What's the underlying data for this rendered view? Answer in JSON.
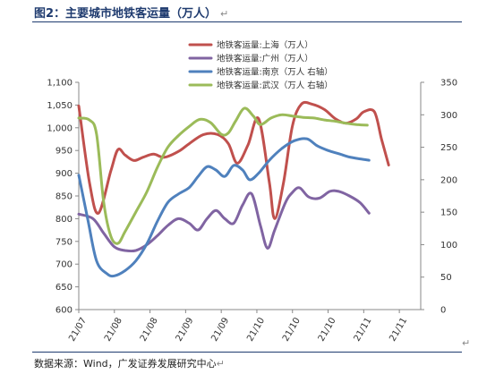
{
  "figure": {
    "title": "图2：主要城市地铁客运量（万人）",
    "title_mark": "↵",
    "source": "数据来源：Wind，广发证券发展研究中心",
    "source_mark": "↵",
    "return_mark": "↵"
  },
  "chart_data": {
    "type": "line",
    "title": "图2：主要城市地铁客运量（万人）",
    "x_ticks": [
      "21/07",
      "21/08",
      "21/08",
      "21/09",
      "21/09",
      "21/10",
      "21/10",
      "21/10",
      "21/11",
      "21/11"
    ],
    "x_range": [
      0,
      9.6
    ],
    "y_left": {
      "range": [
        600,
        1100
      ],
      "ticks": [
        600,
        650,
        700,
        750,
        800,
        850,
        900,
        950,
        1000,
        1050,
        1100
      ],
      "tick_labels": [
        "600",
        "650",
        "700",
        "750",
        "800",
        "850",
        "900",
        "950",
        "1,000",
        "1,050",
        "1,100"
      ]
    },
    "y_right": {
      "range": [
        0,
        350
      ],
      "ticks": [
        0,
        50,
        100,
        150,
        200,
        250,
        300,
        350
      ],
      "tick_labels": [
        "0",
        "50",
        "100",
        "150",
        "200",
        "250",
        "300",
        "350"
      ]
    },
    "grid": false,
    "legend_position": "top-right",
    "series": [
      {
        "name": "地铁客运量:上海（万人）",
        "axis": "left",
        "color": "#c0504d",
        "points": [
          [
            0,
            1048
          ],
          [
            0.3,
            880
          ],
          [
            0.55,
            812
          ],
          [
            0.9,
            905
          ],
          [
            1.1,
            952
          ],
          [
            1.3,
            940
          ],
          [
            1.55,
            928
          ],
          [
            1.8,
            935
          ],
          [
            2.1,
            942
          ],
          [
            2.4,
            935
          ],
          [
            2.8,
            948
          ],
          [
            3.1,
            965
          ],
          [
            3.5,
            985
          ],
          [
            3.9,
            985
          ],
          [
            4.2,
            965
          ],
          [
            4.45,
            922
          ],
          [
            4.75,
            962
          ],
          [
            5.05,
            1020
          ],
          [
            5.35,
            880
          ],
          [
            5.5,
            800
          ],
          [
            5.75,
            880
          ],
          [
            6.0,
            1005
          ],
          [
            6.25,
            1052
          ],
          [
            6.55,
            1052
          ],
          [
            6.9,
            1040
          ],
          [
            7.2,
            1020
          ],
          [
            7.5,
            1010
          ],
          [
            7.8,
            1020
          ],
          [
            8.0,
            1035
          ],
          [
            8.3,
            1035
          ],
          [
            8.5,
            975
          ],
          [
            8.7,
            918
          ]
        ]
      },
      {
        "name": "地铁客运量:广州（万人）",
        "axis": "left",
        "color": "#8064a2",
        "points": [
          [
            0,
            810
          ],
          [
            0.4,
            800
          ],
          [
            0.7,
            768
          ],
          [
            1.0,
            738
          ],
          [
            1.3,
            730
          ],
          [
            1.6,
            730
          ],
          [
            1.9,
            742
          ],
          [
            2.2,
            762
          ],
          [
            2.5,
            785
          ],
          [
            2.8,
            800
          ],
          [
            3.1,
            790
          ],
          [
            3.35,
            775
          ],
          [
            3.6,
            800
          ],
          [
            3.85,
            818
          ],
          [
            4.1,
            800
          ],
          [
            4.35,
            790
          ],
          [
            4.6,
            830
          ],
          [
            4.85,
            855
          ],
          [
            5.1,
            785
          ],
          [
            5.3,
            735
          ],
          [
            5.5,
            775
          ],
          [
            5.8,
            835
          ],
          [
            6.0,
            858
          ],
          [
            6.2,
            868
          ],
          [
            6.45,
            848
          ],
          [
            6.75,
            845
          ],
          [
            7.05,
            860
          ],
          [
            7.3,
            860
          ],
          [
            7.6,
            850
          ],
          [
            7.9,
            835
          ],
          [
            8.15,
            812
          ]
        ]
      },
      {
        "name": "地铁客运量:南京（万人 右轴）",
        "axis": "right",
        "color": "#4f81bd",
        "points": [
          [
            0,
            207
          ],
          [
            0.25,
            140
          ],
          [
            0.5,
            75
          ],
          [
            0.8,
            55
          ],
          [
            1.0,
            52
          ],
          [
            1.3,
            60
          ],
          [
            1.6,
            75
          ],
          [
            1.9,
            100
          ],
          [
            2.2,
            135
          ],
          [
            2.5,
            165
          ],
          [
            2.8,
            178
          ],
          [
            3.1,
            188
          ],
          [
            3.35,
            205
          ],
          [
            3.6,
            220
          ],
          [
            3.85,
            215
          ],
          [
            4.1,
            205
          ],
          [
            4.35,
            222
          ],
          [
            4.6,
            215
          ],
          [
            4.8,
            200
          ],
          [
            5.05,
            210
          ],
          [
            5.35,
            230
          ],
          [
            5.7,
            248
          ],
          [
            6.05,
            260
          ],
          [
            6.4,
            263
          ],
          [
            6.7,
            252
          ],
          [
            7.0,
            245
          ],
          [
            7.3,
            240
          ],
          [
            7.6,
            235
          ],
          [
            7.9,
            232
          ],
          [
            8.15,
            230
          ]
        ]
      },
      {
        "name": "地铁客运量:武汉（万人 右轴）",
        "axis": "right",
        "color": "#9bbb59",
        "points": [
          [
            0,
            295
          ],
          [
            0.3,
            292
          ],
          [
            0.5,
            270
          ],
          [
            0.7,
            165
          ],
          [
            0.9,
            113
          ],
          [
            1.1,
            102
          ],
          [
            1.3,
            120
          ],
          [
            1.6,
            150
          ],
          [
            1.9,
            180
          ],
          [
            2.2,
            218
          ],
          [
            2.5,
            250
          ],
          [
            2.8,
            268
          ],
          [
            3.1,
            282
          ],
          [
            3.4,
            293
          ],
          [
            3.7,
            288
          ],
          [
            4.0,
            270
          ],
          [
            4.2,
            272
          ],
          [
            4.4,
            290
          ],
          [
            4.65,
            310
          ],
          [
            4.9,
            298
          ],
          [
            5.1,
            285
          ],
          [
            5.4,
            295
          ],
          [
            5.7,
            300
          ],
          [
            6.0,
            298
          ],
          [
            6.3,
            296
          ],
          [
            6.6,
            295
          ],
          [
            6.9,
            292
          ],
          [
            7.2,
            290
          ],
          [
            7.5,
            287
          ],
          [
            7.8,
            285
          ],
          [
            8.1,
            284
          ]
        ]
      }
    ]
  }
}
